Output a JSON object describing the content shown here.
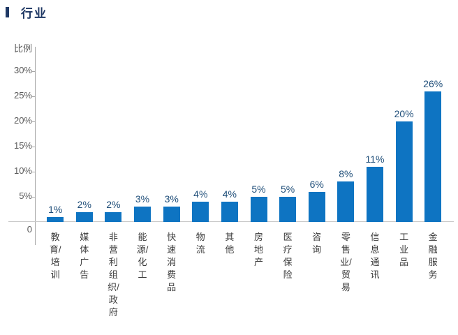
{
  "header": {
    "title": "行业"
  },
  "chart_data": {
    "type": "bar",
    "title": "行业",
    "xlabel": "",
    "ylabel": "比例",
    "categories": [
      "教育/培训",
      "媒体广告",
      "非营利组织/政府",
      "能源/化工",
      "快速消费品",
      "物流",
      "其他",
      "房地产",
      "医疗保险",
      "咨询",
      "零售业/贸易",
      "信息通讯",
      "工业品",
      "金融服务"
    ],
    "values": [
      1,
      2,
      2,
      3,
      3,
      4,
      4,
      5,
      5,
      6,
      8,
      11,
      20,
      26
    ],
    "value_labels": [
      "1%",
      "2%",
      "2%",
      "3%",
      "3%",
      "4%",
      "4%",
      "5%",
      "5%",
      "6%",
      "8%",
      "11%",
      "20%",
      "26%"
    ],
    "y_ticks": [
      {
        "label": "30%",
        "value": 30
      },
      {
        "label": "25%",
        "value": 25
      },
      {
        "label": "20%",
        "value": 20
      },
      {
        "label": "15%",
        "value": 15
      },
      {
        "label": "10%",
        "value": 10
      },
      {
        "label": "5%",
        "value": 5
      },
      {
        "label": "0",
        "value": 0
      }
    ],
    "ylim": [
      0,
      32
    ],
    "grid": false,
    "legend": "none",
    "bar_orientation": "vertical",
    "category_label_orientation": "vertical-stacked"
  },
  "colors": {
    "bar": "#0E74C2",
    "title": "#1F3864",
    "value_label": "#1F4E79",
    "tick_label": "#595959",
    "category_label": "#3A3A3A",
    "axis_line": "#A6A6A6",
    "baseline": "#C9C9C9",
    "background": "#FFFFFF"
  }
}
